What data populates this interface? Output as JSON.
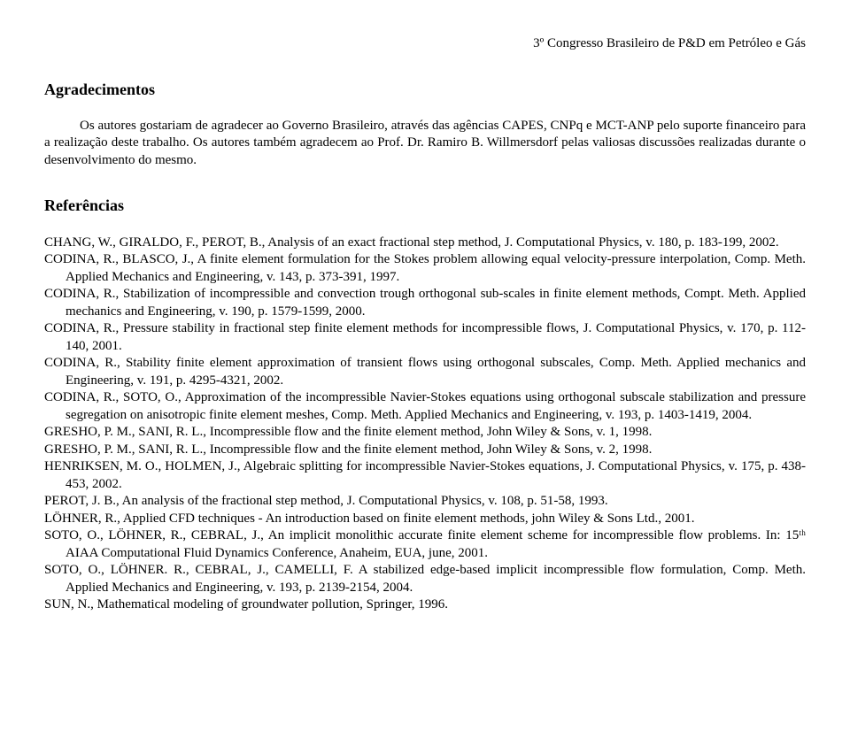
{
  "header": {
    "conference": "3º Congresso Brasileiro de P&D em Petróleo e Gás"
  },
  "ack": {
    "title": "Agradecimentos",
    "body": "Os autores gostariam de agradecer ao Governo Brasileiro, através das agências CAPES, CNPq e MCT-ANP pelo suporte financeiro para a realização deste trabalho. Os autores também agradecem ao Prof. Dr. Ramiro B. Willmersdorf pelas valiosas discussões realizadas durante o desenvolvimento do mesmo."
  },
  "refs": {
    "title": "Referências",
    "items": [
      "CHANG, W., GIRALDO, F., PEROT, B., Analysis of an exact fractional step method, J. Computational Physics, v. 180, p. 183-199, 2002.",
      "CODINA, R., BLASCO, J., A finite element formulation for the Stokes problem allowing equal velocity-pressure interpolation, Comp. Meth. Applied Mechanics and Engineering, v. 143, p. 373-391, 1997.",
      "CODINA, R., Stabilization of incompressible and convection trough orthogonal sub-scales in finite element methods, Compt. Meth. Applied mechanics and Engineering, v. 190, p. 1579-1599, 2000.",
      "CODINA, R., Pressure stability in fractional step finite element methods for incompressible flows, J. Computational Physics, v. 170, p. 112-140, 2001.",
      "CODINA, R., Stability finite element approximation of transient flows using orthogonal subscales, Comp. Meth. Applied mechanics and Engineering, v. 191, p. 4295-4321, 2002.",
      "CODINA, R., SOTO, O., Approximation of the incompressible Navier-Stokes equations using orthogonal subscale stabilization and pressure segregation on anisotropic finite element meshes, Comp. Meth. Applied Mechanics and Engineering, v. 193, p. 1403-1419, 2004.",
      "GRESHO, P. M., SANI, R. L., Incompressible flow and the finite element method, John Wiley & Sons, v. 1, 1998.",
      "GRESHO, P. M., SANI, R. L., Incompressible flow and the finite element method, John Wiley & Sons, v. 2, 1998.",
      "HENRIKSEN, M. O., HOLMEN, J., Algebraic splitting for incompressible Navier-Stokes equations, J. Computational Physics, v. 175, p. 438-453, 2002.",
      "PEROT, J. B., An analysis of the fractional step method, J. Computational Physics, v. 108, p. 51-58, 1993.",
      "LÖHNER, R., Applied CFD techniques - An introduction based on finite element methods, john Wiley & Sons Ltd., 2001.",
      "SOTO, O., LÖHNER, R., CEBRAL, J., An implicit monolithic accurate finite element scheme for incompressible flow problems. In: 15ᵗʰ AIAA Computational Fluid Dynamics Conference, Anaheim, EUA, june, 2001.",
      "SOTO, O., LÖHNER. R., CEBRAL, J., CAMELLI, F. A stabilized edge-based implicit incompressible flow formulation, Comp. Meth. Applied Mechanics and Engineering, v. 193, p. 2139-2154, 2004.",
      "SUN, N., Mathematical modeling of groundwater pollution, Springer, 1996."
    ]
  }
}
